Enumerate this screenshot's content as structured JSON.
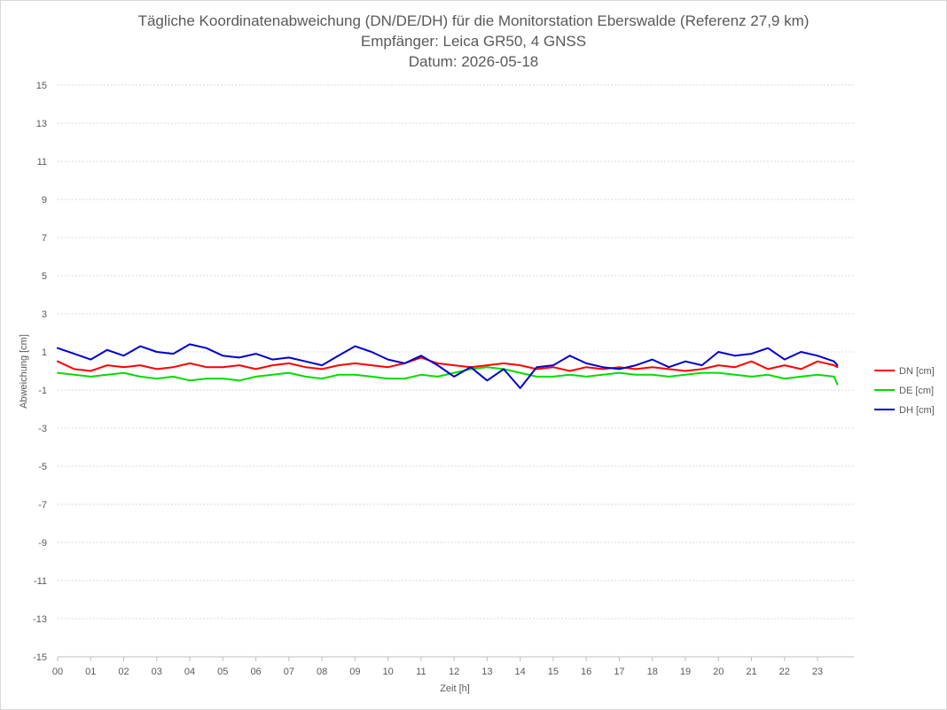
{
  "chart_data": {
    "type": "line",
    "title": [
      "Tägliche Koordinatenabweichung (DN/DE/DH) für die Monitorstation Eberswalde (Referenz 27,9 km)",
      "Empfänger: Leica GR50, 4 GNSS",
      "Datum: 2026-05-18"
    ],
    "xlabel": "Zeit [h]",
    "ylabel": "Abweichung [cm]",
    "xlim": [
      0,
      24.1
    ],
    "ylim": [
      -15,
      15
    ],
    "x_ticks": [
      "00",
      "01",
      "02",
      "03",
      "04",
      "05",
      "06",
      "07",
      "08",
      "09",
      "10",
      "11",
      "12",
      "13",
      "14",
      "15",
      "16",
      "17",
      "18",
      "19",
      "20",
      "21",
      "22",
      "23"
    ],
    "y_ticks": [
      "15",
      "13",
      "11",
      "9",
      "7",
      "5",
      "3",
      "1",
      "-1",
      "-3",
      "-5",
      "-7",
      "-9",
      "-11",
      "-13",
      "-15"
    ],
    "grid": true,
    "legend_position": "right",
    "series": [
      {
        "name": "DN [cm]",
        "color": "#ff0000",
        "x": [
          0,
          0.5,
          1,
          1.5,
          2,
          2.5,
          3,
          3.5,
          4,
          4.5,
          5,
          5.5,
          6,
          6.5,
          7,
          7.5,
          8,
          8.5,
          9,
          9.5,
          10,
          10.5,
          11,
          11.5,
          12,
          12.5,
          13,
          13.5,
          14,
          14.5,
          15,
          15.5,
          16,
          16.5,
          17,
          17.5,
          18,
          18.5,
          19,
          19.5,
          20,
          20.5,
          21,
          21.5,
          22,
          22.5,
          23,
          23.5,
          23.6
        ],
        "y": [
          0.5,
          0.1,
          0.0,
          0.3,
          0.2,
          0.3,
          0.1,
          0.2,
          0.4,
          0.2,
          0.2,
          0.3,
          0.1,
          0.3,
          0.4,
          0.2,
          0.1,
          0.3,
          0.4,
          0.3,
          0.2,
          0.4,
          0.7,
          0.4,
          0.3,
          0.2,
          0.3,
          0.4,
          0.3,
          0.1,
          0.2,
          0.0,
          0.2,
          0.1,
          0.2,
          0.1,
          0.2,
          0.1,
          0.0,
          0.1,
          0.3,
          0.2,
          0.5,
          0.1,
          0.3,
          0.1,
          0.5,
          0.3,
          0.2
        ]
      },
      {
        "name": "DE [cm]",
        "color": "#00dd00",
        "x": [
          0,
          0.5,
          1,
          1.5,
          2,
          2.5,
          3,
          3.5,
          4,
          4.5,
          5,
          5.5,
          6,
          6.5,
          7,
          7.5,
          8,
          8.5,
          9,
          9.5,
          10,
          10.5,
          11,
          11.5,
          12,
          12.5,
          13,
          13.5,
          14,
          14.5,
          15,
          15.5,
          16,
          16.5,
          17,
          17.5,
          18,
          18.5,
          19,
          19.5,
          20,
          20.5,
          21,
          21.5,
          22,
          22.5,
          23,
          23.5,
          23.6
        ],
        "y": [
          -0.1,
          -0.2,
          -0.3,
          -0.2,
          -0.1,
          -0.3,
          -0.4,
          -0.3,
          -0.5,
          -0.4,
          -0.4,
          -0.5,
          -0.3,
          -0.2,
          -0.1,
          -0.3,
          -0.4,
          -0.2,
          -0.2,
          -0.3,
          -0.4,
          -0.4,
          -0.2,
          -0.3,
          -0.1,
          0.1,
          0.2,
          0.1,
          -0.1,
          -0.3,
          -0.3,
          -0.2,
          -0.3,
          -0.2,
          -0.1,
          -0.2,
          -0.2,
          -0.3,
          -0.2,
          -0.1,
          -0.1,
          -0.2,
          -0.3,
          -0.2,
          -0.4,
          -0.3,
          -0.2,
          -0.3,
          -0.7
        ]
      },
      {
        "name": "DH [cm]",
        "color": "#0000cc",
        "x": [
          0,
          0.5,
          1,
          1.5,
          2,
          2.5,
          3,
          3.5,
          4,
          4.5,
          5,
          5.5,
          6,
          6.5,
          7,
          7.5,
          8,
          8.5,
          9,
          9.5,
          10,
          10.5,
          11,
          11.5,
          12,
          12.5,
          13,
          13.5,
          14,
          14.5,
          15,
          15.5,
          16,
          16.5,
          17,
          17.5,
          18,
          18.5,
          19,
          19.5,
          20,
          20.5,
          21,
          21.5,
          22,
          22.5,
          23,
          23.5,
          23.6
        ],
        "y": [
          1.2,
          0.9,
          0.6,
          1.1,
          0.8,
          1.3,
          1.0,
          0.9,
          1.4,
          1.2,
          0.8,
          0.7,
          0.9,
          0.6,
          0.7,
          0.5,
          0.3,
          0.8,
          1.3,
          1.0,
          0.6,
          0.4,
          0.8,
          0.3,
          -0.3,
          0.2,
          -0.5,
          0.1,
          -0.9,
          0.2,
          0.3,
          0.8,
          0.4,
          0.2,
          0.1,
          0.3,
          0.6,
          0.2,
          0.5,
          0.3,
          1.0,
          0.8,
          0.9,
          1.2,
          0.6,
          1.0,
          0.8,
          0.5,
          0.3
        ]
      }
    ]
  }
}
